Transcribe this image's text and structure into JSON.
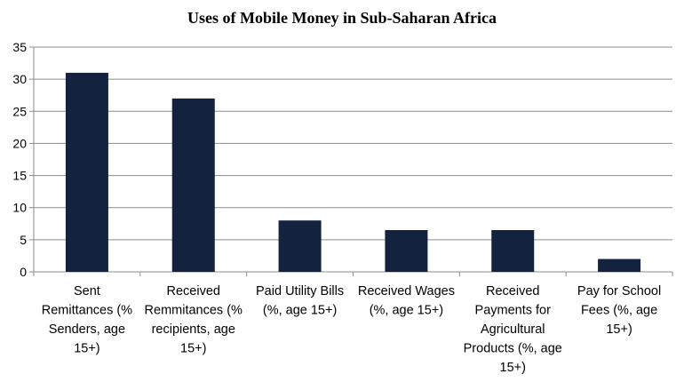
{
  "chart_data": {
    "type": "bar",
    "title": "Uses of Mobile Money in Sub-Saharan Africa",
    "xlabel": "",
    "ylabel": "",
    "ylim": [
      0,
      35
    ],
    "yticks": [
      0,
      5,
      10,
      15,
      20,
      25,
      30,
      35
    ],
    "grid": true,
    "legend": "none",
    "bar_color": "#13223f",
    "categories": [
      [
        "Sent",
        "Remittances (%",
        "Senders, age",
        "15+)"
      ],
      [
        "Received",
        "Remmitances (%",
        "recipients, age",
        "15+)"
      ],
      [
        "Paid Utility Bills",
        "(%, age 15+)"
      ],
      [
        "Received Wages",
        "(%, age 15+)"
      ],
      [
        "Received",
        "Payments for",
        "Agricultural",
        "Products (%, age",
        "15+)"
      ],
      [
        "Pay for School",
        "Fees (%, age",
        "15+)"
      ]
    ],
    "values": [
      31,
      27,
      8,
      6.5,
      6.5,
      2
    ]
  }
}
